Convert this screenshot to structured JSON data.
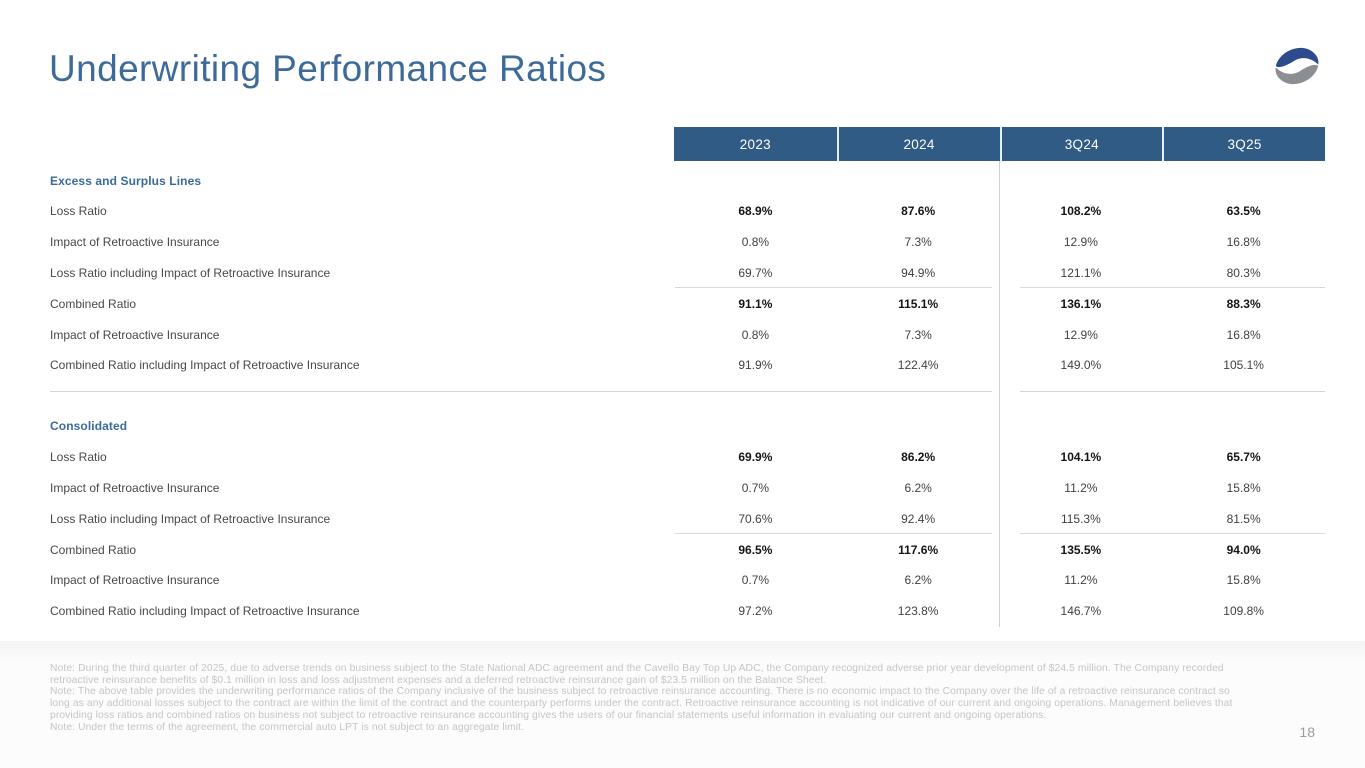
{
  "slide": {
    "title": "Underwriting Performance Ratios",
    "page_number": "18"
  },
  "colors": {
    "header_band": "#2f5b85",
    "title_text": "#3d6a99",
    "section_heading": "#3a6b9c",
    "logo_blue": "#2c4a8c",
    "logo_gray": "#8b8e92"
  },
  "table": {
    "columns": [
      "2023",
      "2024",
      "3Q24",
      "3Q25"
    ],
    "sections": [
      {
        "name": "Excess and Surplus Lines",
        "rows": [
          {
            "label": "Loss Ratio",
            "values": [
              "68.9%",
              "87.6%",
              "108.2%",
              "63.5%"
            ],
            "bold": true
          },
          {
            "label": "Impact of Retroactive Insurance",
            "values": [
              "0.8%",
              "7.3%",
              "12.9%",
              "16.8%"
            ],
            "bold": false
          },
          {
            "label": "Loss Ratio including Impact of Retroactive Insurance",
            "values": [
              "69.7%",
              "94.9%",
              "121.1%",
              "80.3%"
            ],
            "bold": false,
            "rule_below": true
          },
          {
            "label": "Combined Ratio",
            "values": [
              "91.1%",
              "115.1%",
              "136.1%",
              "88.3%"
            ],
            "bold": true
          },
          {
            "label": "Impact of Retroactive Insurance",
            "values": [
              "0.8%",
              "7.3%",
              "12.9%",
              "16.8%"
            ],
            "bold": false
          },
          {
            "label": "Combined Ratio including Impact of Retroactive Insurance",
            "values": [
              "91.9%",
              "122.4%",
              "149.0%",
              "105.1%"
            ],
            "bold": false
          }
        ]
      },
      {
        "name": "Consolidated",
        "rows": [
          {
            "label": "Loss Ratio",
            "values": [
              "69.9%",
              "86.2%",
              "104.1%",
              "65.7%"
            ],
            "bold": true
          },
          {
            "label": "Impact of Retroactive Insurance",
            "values": [
              "0.7%",
              "6.2%",
              "11.2%",
              "15.8%"
            ],
            "bold": false
          },
          {
            "label": "Loss Ratio including Impact of Retroactive Insurance",
            "values": [
              "70.6%",
              "92.4%",
              "115.3%",
              "81.5%"
            ],
            "bold": false,
            "rule_below": true
          },
          {
            "label": "Combined Ratio",
            "values": [
              "96.5%",
              "117.6%",
              "135.5%",
              "94.0%"
            ],
            "bold": true
          },
          {
            "label": "Impact of Retroactive Insurance",
            "values": [
              "0.7%",
              "6.2%",
              "11.2%",
              "15.8%"
            ],
            "bold": false
          },
          {
            "label": "Combined Ratio including Impact of Retroactive Insurance",
            "values": [
              "97.2%",
              "123.8%",
              "146.7%",
              "109.8%"
            ],
            "bold": false
          }
        ]
      }
    ]
  },
  "notes": [
    "Note: During the third quarter of 2025, due to adverse trends on business subject to the State National ADC agreement and the Cavello Bay Top Up ADC, the Company recognized adverse prior year development of $24.5 million. The Company recorded retroactive reinsurance benefits of $0.1 million in loss and loss adjustment expenses and a deferred retroactive reinsurance gain of $23.5 million on the Balance Sheet.",
    "Note: The above table provides the underwriting performance ratios of the Company inclusive of the business subject to retroactive reinsurance accounting. There is no economic impact to the Company over the life of a retroactive reinsurance contract so long as any additional losses subject to the contract are within the limit of the contract and the counterparty performs under the contract. Retroactive reinsurance accounting is not indicative of our current and ongoing operations. Management believes that providing loss ratios and combined ratios on business not subject to retroactive reinsurance accounting gives the users of our financial statements useful information in evaluating our current and ongoing operations.",
    "Note: Under the terms of the agreement, the commercial auto LPT is not subject to an aggregate limit."
  ]
}
